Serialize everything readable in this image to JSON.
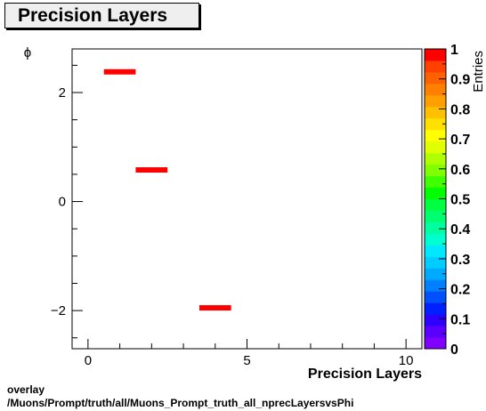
{
  "header": {
    "title": "Precision Layers"
  },
  "footer": {
    "line1": "overlay",
    "line2": "/Muons/Prompt/truth/all/Muons_Prompt_truth_all_nprecLayersvsPhi"
  },
  "chart_data": {
    "type": "heatmap",
    "title": "Precision Layers",
    "xlabel": "Precision Layers",
    "ylabel": "ϕ",
    "zlabel": "Entries",
    "xlim": [
      -0.5,
      10.5
    ],
    "ylim": [
      -2.7,
      2.8
    ],
    "zlim": [
      0,
      1
    ],
    "x_ticks": [
      0,
      5,
      10
    ],
    "y_ticks": [
      -2,
      0,
      2
    ],
    "z_ticks": [
      "0",
      "0.1",
      "0.2",
      "0.3",
      "0.4",
      "0.5",
      "0.6",
      "0.7",
      "0.8",
      "0.9",
      "1"
    ],
    "bins": [
      {
        "x": [
          0.5,
          1.5
        ],
        "y": 2.38,
        "value": 1
      },
      {
        "x": [
          1.5,
          2.5
        ],
        "y": 0.58,
        "value": 1
      },
      {
        "x": [
          3.5,
          4.5
        ],
        "y": -1.95,
        "value": 1
      }
    ],
    "palette": [
      "#7f00ff",
      "#5a00ff",
      "#2d00ff",
      "#0020ff",
      "#0050ff",
      "#0080ff",
      "#00aaff",
      "#00ccff",
      "#00e8ff",
      "#00ffd0",
      "#00ffa0",
      "#00ff70",
      "#00ff40",
      "#00ff00",
      "#40ff00",
      "#80ff00",
      "#b0ff00",
      "#e0ff00",
      "#ffff00",
      "#ffe000",
      "#ffc000",
      "#ffa000",
      "#ff8000",
      "#ff6000",
      "#ff4000",
      "#ff0000"
    ],
    "bin_color": "#ff0000"
  }
}
